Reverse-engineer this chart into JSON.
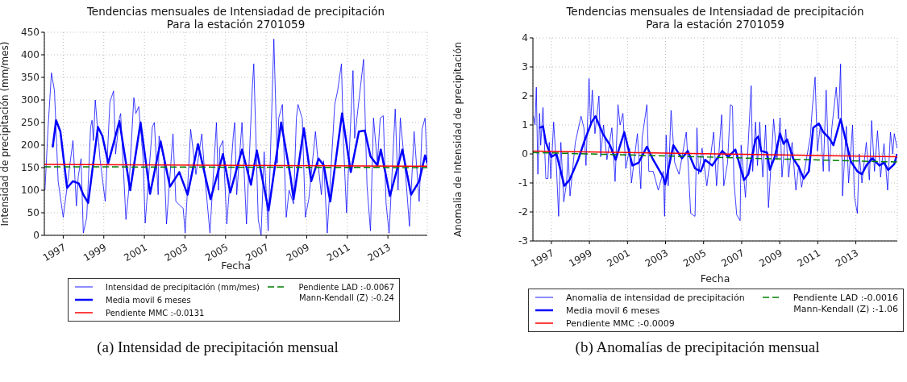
{
  "chart_data": [
    {
      "type": "line",
      "title": "Tendencias mensuales de Intensiadad de precipitación\nPara la estación 2701059",
      "xlabel": "Fecha",
      "ylabel": "Intensidad de precipitación (mm/mes)",
      "xlim": [
        1996.07,
        2014.94
      ],
      "xticks": [
        1997,
        1999,
        2001,
        2003,
        2005,
        2007,
        2009,
        2011,
        2013
      ],
      "ylim": [
        0,
        450
      ],
      "yticks": [
        0,
        50,
        100,
        150,
        200,
        250,
        300,
        350,
        400,
        450
      ],
      "grid": true,
      "legend": "bottom",
      "annotations": [
        "Mann-Kendall (Z) :-0.24",
        "(a) Intensidad de precipitación mensual"
      ],
      "series": [
        {
          "name": "Intensidad de precipitación (mm/mes)",
          "color": "#0000ff",
          "x": [
            1996.1,
            1996.25,
            1996.42,
            1996.57,
            1996.75,
            1997.0,
            1997.48,
            1997.65,
            1997.74,
            1997.88,
            1997.99,
            1998.16,
            1998.35,
            1998.42,
            1998.49,
            1998.58,
            1998.81,
            1999.07,
            1999.3,
            1999.48,
            1999.58,
            1999.77,
            1999.83,
            2000.09,
            2000.23,
            2000.48,
            2000.58,
            2000.72,
            2000.93,
            2001.04,
            2001.39,
            2001.49,
            2001.68,
            2001.72,
            2001.97,
            2002.09,
            2002.41,
            2002.55,
            2002.91,
            2003.01,
            2003.28,
            2003.54,
            2003.83,
            2004.0,
            2004.23,
            2004.55,
            2004.65,
            2004.72,
            2004.87,
            2005.06,
            2005.38,
            2005.45,
            2005.55,
            2005.81,
            2006.03,
            2006.32,
            2006.39,
            2006.61,
            2006.75,
            2006.9,
            2007.1,
            2007.38,
            2007.55,
            2007.62,
            2007.8,
            2007.99,
            2008.13,
            2008.35,
            2008.49,
            2008.57,
            2008.78,
            2008.93,
            2009.1,
            2009.43,
            2009.58,
            2009.72,
            2009.83,
            2010.01,
            2010.38,
            2010.52,
            2010.71,
            2010.81,
            2010.96,
            2011.28,
            2011.36,
            2011.8,
            2011.97,
            2012.14,
            2012.29,
            2012.48,
            2012.62,
            2012.77,
            2012.91,
            2013.06,
            2013.36,
            2013.5,
            2013.61,
            2013.88,
            2014.06,
            2014.29,
            2014.54,
            2014.68,
            2014.83,
            2014.94
          ],
          "values": [
            100,
            235,
            360,
            320,
            120,
            40,
            210,
            65,
            130,
            170,
            5,
            40,
            240,
            255,
            210,
            300,
            170,
            75,
            295,
            320,
            180,
            260,
            270,
            35,
            100,
            305,
            270,
            285,
            175,
            27,
            240,
            250,
            90,
            220,
            165,
            25,
            225,
            75,
            60,
            5,
            235,
            135,
            225,
            120,
            5,
            250,
            100,
            195,
            210,
            25,
            220,
            250,
            90,
            250,
            25,
            330,
            380,
            35,
            0,
            185,
            10,
            435,
            160,
            260,
            290,
            40,
            100,
            70,
            260,
            290,
            258,
            40,
            80,
            230,
            150,
            90,
            165,
            5,
            290,
            320,
            380,
            205,
            50,
            365,
            215,
            390,
            110,
            10,
            260,
            160,
            260,
            265,
            70,
            5,
            280,
            100,
            260,
            130,
            20,
            230,
            75,
            235,
            260,
            150
          ]
        },
        {
          "name": "Media movil 6 meses",
          "color": "#0000ff",
          "x": [
            1996.48,
            1996.65,
            1996.86,
            1997.19,
            1997.48,
            1997.77,
            1997.99,
            1998.23,
            1998.71,
            1998.93,
            1999.22,
            1999.77,
            2000.3,
            2000.81,
            2001.28,
            2001.8,
            2002.26,
            2002.72,
            2003.13,
            2003.64,
            2004.26,
            2004.87,
            2005.23,
            2005.81,
            2006.25,
            2006.54,
            2007.12,
            2007.74,
            2008.2,
            2008.35,
            2008.86,
            2009.22,
            2009.58,
            2009.84,
            2010.16,
            2010.74,
            2011.17,
            2011.57,
            2011.86,
            2012.14,
            2012.48,
            2012.65,
            2013.1,
            2013.71,
            2014.14,
            2014.54,
            2014.83,
            2014.94
          ],
          "values": [
            195,
            255,
            230,
            105,
            120,
            115,
            90,
            72,
            240,
            220,
            160,
            253,
            100,
            250,
            92,
            208,
            108,
            140,
            90,
            202,
            80,
            180,
            95,
            190,
            112,
            188,
            55,
            250,
            130,
            80,
            237,
            120,
            170,
            155,
            75,
            270,
            140,
            230,
            232,
            175,
            155,
            190,
            87,
            190,
            90,
            120,
            177,
            160
          ]
        },
        {
          "name": "Pendiente MMC :-0.0131",
          "color": "#ff0000",
          "x": [
            1996.07,
            2014.94
          ],
          "values": [
            157,
            153
          ]
        },
        {
          "name": "Pendiente LAD :-0.0067",
          "color": "#008000",
          "line_style": "dashed",
          "x": [
            1996.07,
            2014.94
          ],
          "values": [
            152,
            150
          ]
        }
      ]
    },
    {
      "type": "line",
      "title": "Tendencias mensuales de Intensiadad de precipitación\nPara la estación 2701059",
      "xlabel": "Fecha",
      "ylabel": "Anomalia de Intensidad de precipitación",
      "xlim": [
        1996.03,
        2015.18
      ],
      "xticks": [
        1997,
        1999,
        2001,
        2003,
        2005,
        2007,
        2009,
        2011,
        2013
      ],
      "ylim": [
        -3,
        4
      ],
      "yticks": [
        -3,
        -2,
        -1,
        0,
        1,
        2,
        3,
        4
      ],
      "grid": true,
      "legend": "bottom",
      "annotations": [
        "Mann-Kendall (Z) :-1.06",
        "(b) Anomalías de precipitación mensual"
      ],
      "series": [
        {
          "name": "Anomalia de intensidad de precipitación",
          "color": "#0000ff",
          "x": [
            1996.06,
            1996.14,
            1996.21,
            1996.29,
            1996.38,
            1996.44,
            1996.56,
            1996.71,
            1996.82,
            1996.89,
            1996.97,
            1997.12,
            1997.27,
            1997.38,
            1997.5,
            1997.65,
            1997.8,
            1997.88,
            1997.98,
            1998.26,
            1998.56,
            1998.71,
            1998.82,
            1998.98,
            1999.06,
            1999.15,
            1999.29,
            1999.5,
            1999.59,
            1999.74,
            1999.92,
            2000.18,
            2000.35,
            2000.5,
            2000.61,
            2000.76,
            2000.91,
            2001.11,
            2001.21,
            2001.52,
            2001.7,
            2001.77,
            2002.02,
            2002.12,
            2002.35,
            2002.62,
            2002.88,
            2002.95,
            2003.03,
            2003.14,
            2003.29,
            2003.48,
            2003.71,
            2004.09,
            2004.2,
            2004.32,
            2004.55,
            2004.65,
            2004.74,
            2004.92,
            2005.17,
            2005.53,
            2005.68,
            2005.95,
            2006.06,
            2006.26,
            2006.41,
            2006.52,
            2006.59,
            2006.74,
            2006.92,
            2006.97,
            2007.2,
            2007.5,
            2007.58,
            2007.73,
            2007.83,
            2007.95,
            2008.11,
            2008.26,
            2008.41,
            2008.68,
            2008.86,
            2009.02,
            2009.12,
            2009.32,
            2009.47,
            2009.65,
            2009.85,
            2010.0,
            2010.15,
            2010.61,
            2010.71,
            2010.86,
            2010.98,
            2011.14,
            2011.29,
            2011.44,
            2011.59,
            2011.74,
            2011.97,
            2012.09,
            2012.2,
            2012.3,
            2012.5,
            2012.62,
            2012.83,
            2012.92,
            2013.08,
            2013.18,
            2013.32,
            2013.55,
            2013.71,
            2013.83,
            2013.98,
            2014.14,
            2014.3,
            2014.48,
            2014.67,
            2014.82,
            2014.94,
            2015.02,
            2015.17
          ],
          "values": [
            1.3,
            1.0,
            2.3,
            -0.7,
            1.4,
            0.3,
            1.6,
            -0.85,
            -0.85,
            0.4,
            -0.85,
            1.1,
            -0.5,
            -2.15,
            0.4,
            -1.65,
            -1.0,
            0.05,
            -1.45,
            0.4,
            1.3,
            0.9,
            -0.4,
            2.6,
            1.0,
            2.2,
            0.7,
            2.0,
            -0.1,
            1.0,
            -0.2,
            0.9,
            -0.95,
            1.7,
            1.0,
            1.4,
            -0.5,
            0.2,
            -1.0,
            0.7,
            -1.2,
            0.55,
            1.7,
            -0.6,
            -0.6,
            -1.25,
            -0.6,
            -2.15,
            0.65,
            -1.1,
            1.5,
            -0.3,
            -0.7,
            0.75,
            -0.5,
            -2.05,
            -2.15,
            0.9,
            -0.7,
            0.2,
            -1.1,
            0.75,
            -1.1,
            1.35,
            -1.1,
            -0.3,
            1.7,
            1.65,
            -0.9,
            -2.1,
            -2.3,
            0.3,
            -1.5,
            2.35,
            -0.6,
            1.1,
            -0.4,
            1.1,
            -0.8,
            1.0,
            -1.85,
            1.2,
            -0.2,
            1.25,
            -0.8,
            0.85,
            -0.8,
            0.4,
            -1.25,
            -0.4,
            -1.15,
            0.6,
            1.55,
            2.65,
            0.1,
            1.0,
            -0.6,
            2.2,
            -0.6,
            0.9,
            2.3,
            1.2,
            3.1,
            -1.45,
            0.95,
            -1.0,
            1.0,
            -1.45,
            -2.05,
            0.0,
            -1.0,
            0.4,
            -0.9,
            1.15,
            -0.6,
            0.8,
            -0.8,
            0.35,
            -1.25,
            0.75,
            0.0,
            0.7,
            0.2
          ]
        },
        {
          "name": "Media movil 6 meses",
          "color": "#0000ff",
          "x": [
            1996.36,
            1996.56,
            1996.71,
            1997.0,
            1997.27,
            1997.42,
            1997.68,
            1997.95,
            1998.41,
            1998.74,
            1999.12,
            1999.32,
            1999.7,
            2000.08,
            2000.38,
            2000.83,
            2001.26,
            2001.59,
            2002.02,
            2002.35,
            2002.88,
            2002.98,
            2003.41,
            2003.86,
            2004.17,
            2004.55,
            2004.85,
            2005.08,
            2005.45,
            2005.98,
            2006.29,
            2006.67,
            2007.12,
            2007.35,
            2007.73,
            2007.88,
            2008.03,
            2008.33,
            2008.48,
            2008.74,
            2009.02,
            2009.2,
            2009.39,
            2009.7,
            2010.0,
            2010.26,
            2010.53,
            2010.76,
            2011.06,
            2011.29,
            2011.59,
            2011.82,
            2012.2,
            2012.5,
            2012.73,
            2013.08,
            2013.32,
            2013.55,
            2013.86,
            2014.24,
            2014.48,
            2014.7,
            2015.02,
            2015.17
          ],
          "values": [
            0.9,
            0.95,
            0.4,
            -0.1,
            0.0,
            -0.4,
            -1.1,
            -0.9,
            -0.2,
            0.45,
            1.1,
            1.3,
            0.7,
            0.3,
            -0.2,
            0.75,
            -0.4,
            -0.3,
            0.25,
            -0.2,
            -0.8,
            -1.05,
            0.3,
            -0.15,
            0.1,
            -0.5,
            -0.6,
            -0.2,
            -0.4,
            0.1,
            -0.1,
            0.15,
            -0.9,
            -0.7,
            0.5,
            0.6,
            0.1,
            0.05,
            -0.55,
            -0.1,
            0.7,
            0.35,
            0.5,
            -0.15,
            -0.45,
            -0.85,
            -0.6,
            0.9,
            1.05,
            0.75,
            0.55,
            0.3,
            1.2,
            0.4,
            -0.25,
            -0.6,
            -0.7,
            -0.4,
            -0.15,
            -0.4,
            -0.3,
            -0.55,
            -0.35,
            0.0
          ]
        },
        {
          "name": "Pendiente MMC :-0.0009",
          "color": "#ff0000",
          "x": [
            1996.03,
            2015.18
          ],
          "values": [
            0.1,
            -0.1
          ]
        },
        {
          "name": "Pendiente LAD :-0.0016",
          "color": "#008000",
          "line_style": "dashed",
          "x": [
            1996.03,
            2015.18
          ],
          "values": [
            0.05,
            -0.28
          ]
        }
      ]
    }
  ]
}
